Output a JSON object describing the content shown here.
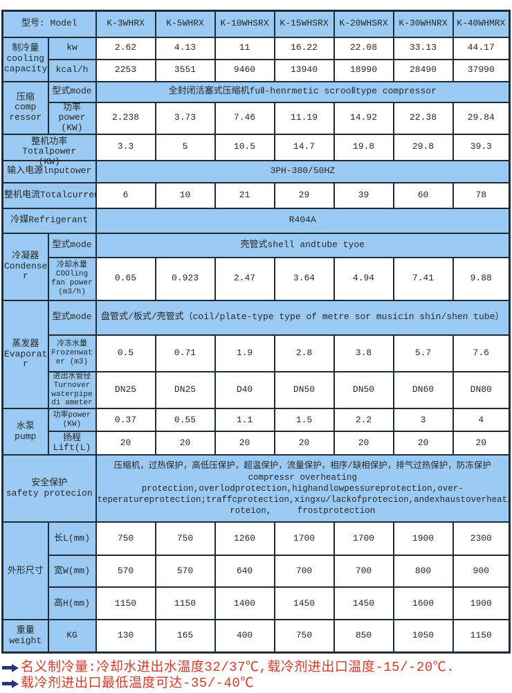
{
  "colors": {
    "header_bg": "#9bcbf5",
    "border": "#1d2a38",
    "note_red": "#d23b2a",
    "arrow_navy": "#27357e"
  },
  "table": {
    "rows": [
      {
        "cells": [
          {
            "t": "型号: Model",
            "k": "label",
            "cs": 2
          },
          {
            "t": "K-3WHRX",
            "k": "label"
          },
          {
            "t": "K-5WHRX",
            "k": "label"
          },
          {
            "t": "K-10WHSRX",
            "k": "label"
          },
          {
            "t": "K-15WHSRX",
            "k": "label"
          },
          {
            "t": "K-20WHSRX",
            "k": "label"
          },
          {
            "t": "K-30WHNRX",
            "k": "label"
          },
          {
            "t": "K-40WHMRX",
            "k": "label"
          }
        ]
      },
      {
        "cells": [
          {
            "t": "制冷量\ncooling\ncapacity",
            "k": "label",
            "rs": 2
          },
          {
            "t": "kw",
            "k": "label"
          },
          {
            "t": "2.62",
            "k": "data"
          },
          {
            "t": "4.13",
            "k": "data"
          },
          {
            "t": "11",
            "k": "data"
          },
          {
            "t": "16.22",
            "k": "data"
          },
          {
            "t": "22.08",
            "k": "data"
          },
          {
            "t": "33.13",
            "k": "data"
          },
          {
            "t": "44.17",
            "k": "data"
          }
        ]
      },
      {
        "cells": [
          {
            "t": "kcal/h",
            "k": "label"
          },
          {
            "t": "2253",
            "k": "data"
          },
          {
            "t": "3551",
            "k": "data"
          },
          {
            "t": "9460",
            "k": "data"
          },
          {
            "t": "13940",
            "k": "data"
          },
          {
            "t": "18990",
            "k": "data"
          },
          {
            "t": "28490",
            "k": "data"
          },
          {
            "t": "37990",
            "k": "data"
          }
        ]
      },
      {
        "cells": [
          {
            "t": "压缩\ncomp\nressor",
            "k": "label",
            "rs": 2
          },
          {
            "t": "型式mode",
            "k": "label"
          },
          {
            "t": "全封闭活塞式压缩机fuⅡ-henrmetic scrooⅡtype compressor",
            "k": "label",
            "cs": 7
          }
        ]
      },
      {
        "cells": [
          {
            "t": "功率\npower\n(KW)",
            "k": "label"
          },
          {
            "t": "2.238",
            "k": "data"
          },
          {
            "t": "3.73",
            "k": "data"
          },
          {
            "t": "7.46",
            "k": "data"
          },
          {
            "t": "11.19",
            "k": "data"
          },
          {
            "t": "14.92",
            "k": "data"
          },
          {
            "t": "22.38",
            "k": "data"
          },
          {
            "t": "29.84",
            "k": "data"
          }
        ]
      },
      {
        "cells": [
          {
            "t": "整机功率\nTotalpower\n(KW)",
            "k": "label",
            "cs": 2
          },
          {
            "t": "3.3",
            "k": "data"
          },
          {
            "t": "5",
            "k": "data"
          },
          {
            "t": "10.5",
            "k": "data"
          },
          {
            "t": "14.7",
            "k": "data"
          },
          {
            "t": "19.8",
            "k": "data"
          },
          {
            "t": "29.8",
            "k": "data"
          },
          {
            "t": "39.3",
            "k": "data"
          }
        ]
      },
      {
        "cells": [
          {
            "t": "输入电源lnputower",
            "k": "label",
            "cs": 2
          },
          {
            "t": "3PH-380/50HZ",
            "k": "label",
            "cs": 7
          }
        ]
      },
      {
        "cells": [
          {
            "t": "整机电流Totalcurrent(A)",
            "k": "label",
            "cs": 2
          },
          {
            "t": "6",
            "k": "data"
          },
          {
            "t": "10",
            "k": "data"
          },
          {
            "t": "21",
            "k": "data"
          },
          {
            "t": "29",
            "k": "data"
          },
          {
            "t": "39",
            "k": "data"
          },
          {
            "t": "60",
            "k": "data"
          },
          {
            "t": "78",
            "k": "data"
          }
        ]
      },
      {
        "cells": [
          {
            "t": "冷媒Refrigerant",
            "k": "label",
            "cs": 2
          },
          {
            "t": "R404A",
            "k": "label",
            "cs": 7
          }
        ]
      },
      {
        "cells": [
          {
            "t": "冷凝器\nCondense\nr",
            "k": "label",
            "rs": 2
          },
          {
            "t": "型式mode",
            "k": "label"
          },
          {
            "t": "壳管式shell andtube tyoe",
            "k": "label",
            "cs": 7
          }
        ]
      },
      {
        "cells": [
          {
            "t": "冷却水量\nCOOling\nfan power\n(m3/h)",
            "k": "label"
          },
          {
            "t": "0.65",
            "k": "data"
          },
          {
            "t": "0.923",
            "k": "data"
          },
          {
            "t": "2.47",
            "k": "data"
          },
          {
            "t": "3.64",
            "k": "data"
          },
          {
            "t": "4.94",
            "k": "data"
          },
          {
            "t": "7.41",
            "k": "data"
          },
          {
            "t": "9.88",
            "k": "data"
          }
        ]
      },
      {
        "cells": [
          {
            "t": "蒸发器\nEvaporato\nr",
            "k": "label",
            "rs": 3
          },
          {
            "t": "型式mode",
            "k": "label"
          },
          {
            "t": "盘管式/板式/壳管式（coil/plate-type type of metre sor musicin shin/shen tube）",
            "k": "label",
            "cs": 7
          }
        ]
      },
      {
        "cells": [
          {
            "t": "冷冻水量\nFrozenwat\ner (m3)",
            "k": "label"
          },
          {
            "t": "0.5",
            "k": "data"
          },
          {
            "t": "0.71",
            "k": "data"
          },
          {
            "t": "1.9",
            "k": "data"
          },
          {
            "t": "2.8",
            "k": "data"
          },
          {
            "t": "3.8",
            "k": "data"
          },
          {
            "t": "5.7",
            "k": "data"
          },
          {
            "t": "7.6",
            "k": "data"
          }
        ]
      },
      {
        "cells": [
          {
            "t": "进出水管径\nTurnover\nwaterpipe\ndi ameter",
            "k": "label"
          },
          {
            "t": "DN25",
            "k": "data"
          },
          {
            "t": "DN25",
            "k": "data"
          },
          {
            "t": "D40",
            "k": "data"
          },
          {
            "t": "DN50",
            "k": "data"
          },
          {
            "t": "DN50",
            "k": "data"
          },
          {
            "t": "DN60",
            "k": "data"
          },
          {
            "t": "DN80",
            "k": "data"
          }
        ]
      },
      {
        "cells": [
          {
            "t": "水泵\npump",
            "k": "label",
            "rs": 2
          },
          {
            "t": "功率power\n(KW)",
            "k": "label"
          },
          {
            "t": "0.37",
            "k": "data"
          },
          {
            "t": "0.55",
            "k": "data"
          },
          {
            "t": "1.1",
            "k": "data"
          },
          {
            "t": "1.5",
            "k": "data"
          },
          {
            "t": "2.2",
            "k": "data"
          },
          {
            "t": "3",
            "k": "data"
          },
          {
            "t": "4",
            "k": "data"
          }
        ]
      },
      {
        "cells": [
          {
            "t": "扬程\nLift(L)",
            "k": "label"
          },
          {
            "t": "20",
            "k": "data"
          },
          {
            "t": "20",
            "k": "data"
          },
          {
            "t": "20",
            "k": "data"
          },
          {
            "t": "20",
            "k": "data"
          },
          {
            "t": "20",
            "k": "data"
          },
          {
            "t": "20",
            "k": "data"
          },
          {
            "t": "20",
            "k": "data"
          }
        ]
      },
      {
        "cells": [
          {
            "t": "安全保护\nsafety protecion",
            "k": "label",
            "cs": 2
          },
          {
            "t": "压缩机，过热保护，高低压保护，超温保护，流量保护，相序/缺相保护，排气过热保护，防冻保护\ncompressr overheating\nprotection,overlodprotection,highandlowpessureprotection,over-\nteperatureprotection;traffcprotection,xingxu/lackofprotecion,andexhaustoverheatingp\nroteion,     frostprotection",
            "k": "label",
            "cs": 7
          }
        ]
      },
      {
        "cells": [
          {
            "t": "外形尺寸",
            "k": "label",
            "rs": 3
          },
          {
            "t": "长L(mm)",
            "k": "label"
          },
          {
            "t": "750",
            "k": "data"
          },
          {
            "t": "750",
            "k": "data"
          },
          {
            "t": "1260",
            "k": "data"
          },
          {
            "t": "1700",
            "k": "data"
          },
          {
            "t": "1700",
            "k": "data"
          },
          {
            "t": "1900",
            "k": "data"
          },
          {
            "t": "2300",
            "k": "data"
          }
        ]
      },
      {
        "cells": [
          {
            "t": "宽W(mm)",
            "k": "label"
          },
          {
            "t": "570",
            "k": "data"
          },
          {
            "t": "570",
            "k": "data"
          },
          {
            "t": "640",
            "k": "data"
          },
          {
            "t": "700",
            "k": "data"
          },
          {
            "t": "700",
            "k": "data"
          },
          {
            "t": "800",
            "k": "data"
          },
          {
            "t": "900",
            "k": "data"
          }
        ]
      },
      {
        "cells": [
          {
            "t": "高H(mm)",
            "k": "label"
          },
          {
            "t": "1150",
            "k": "data"
          },
          {
            "t": "1150",
            "k": "data"
          },
          {
            "t": "1400",
            "k": "data"
          },
          {
            "t": "1450",
            "k": "data"
          },
          {
            "t": "1450",
            "k": "data"
          },
          {
            "t": "1600",
            "k": "data"
          },
          {
            "t": "1900",
            "k": "data"
          }
        ]
      },
      {
        "cells": [
          {
            "t": "重量\nweight",
            "k": "label"
          },
          {
            "t": "KG",
            "k": "label"
          },
          {
            "t": "130",
            "k": "data"
          },
          {
            "t": "165",
            "k": "data"
          },
          {
            "t": "400",
            "k": "data"
          },
          {
            "t": "750",
            "k": "data"
          },
          {
            "t": "850",
            "k": "data"
          },
          {
            "t": "1050",
            "k": "data"
          },
          {
            "t": "1150",
            "k": "data"
          }
        ]
      }
    ]
  },
  "notes": [
    {
      "text": "名义制冷量:冷却水进出水温度32/37℃,载冷剂进出口温度-15/-20℃."
    },
    {
      "text": "载冷剂进出口最低温度可达-35/-40℃"
    }
  ]
}
